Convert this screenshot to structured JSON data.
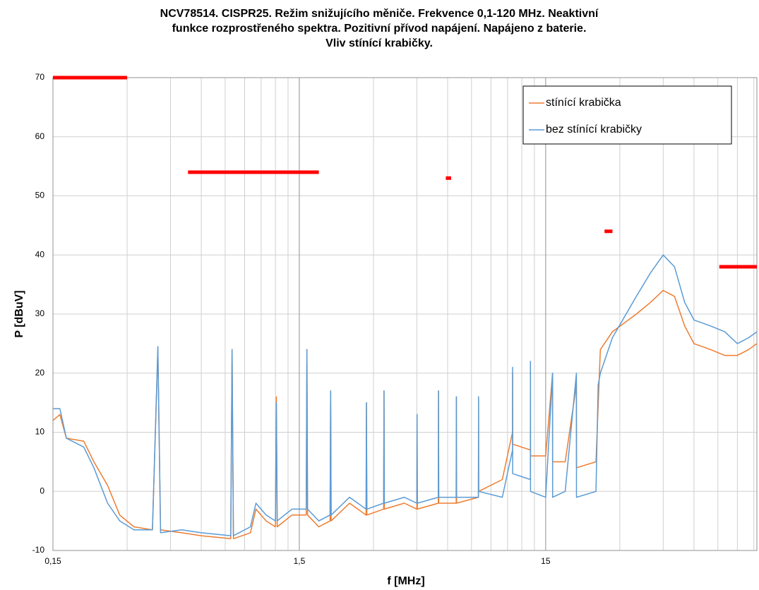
{
  "chart_data": {
    "type": "line",
    "title_lines": [
      "NCV78514. CISPR25. Režim snižujícího měniče. Frekvence 0,1-120 MHz. Neaktivní",
      "funkce rozprostřeného spektra. Pozitivní přívod napájení. Napájeno z baterie.",
      "Vliv stínící krabičky."
    ],
    "x_label": "f [MHz]",
    "y_label": "P [dBuV]",
    "log_x": true,
    "grid": true,
    "legend": "upper right",
    "xlim": [
      0.15,
      108
    ],
    "ylim": [
      -10,
      70
    ],
    "xticks": [
      {
        "value": 0.15,
        "label": "0,15"
      },
      {
        "value": 1.5,
        "label": "1,5"
      },
      15
    ],
    "xgrid": [
      0.3,
      0.45,
      0.6,
      0.75,
      0.9,
      1.05,
      1.2,
      1.35,
      3,
      4.5,
      6,
      7.5,
      9,
      10.5,
      12,
      13.5,
      30,
      45,
      60,
      75,
      90,
      105
    ],
    "yticks": [
      -10,
      0,
      10,
      20,
      30,
      40,
      50,
      60,
      70
    ],
    "series": [
      {
        "name": "stínící krabička",
        "color": "#ed7d31",
        "x": [
          0.15,
          0.16,
          0.17,
          0.2,
          0.22,
          0.25,
          0.28,
          0.32,
          0.38,
          0.4,
          0.41,
          0.5,
          0.6,
          0.79,
          0.8,
          0.81,
          0.95,
          1.0,
          1.1,
          1.2,
          1.21,
          1.22,
          1.4,
          1.6,
          1.61,
          1.62,
          1.8,
          2.0,
          2.01,
          2.02,
          2.4,
          2.8,
          2.81,
          2.82,
          3.3,
          3.31,
          3.32,
          4.0,
          4.5,
          4.51,
          4.52,
          5.5,
          5.51,
          5.52,
          6.5,
          6.51,
          6.52,
          8,
          8.01,
          8.02,
          10,
          11,
          11.01,
          11.02,
          13,
          13.01,
          13.02,
          15,
          16,
          16.01,
          18,
          20,
          20.01,
          24,
          25,
          28,
          35,
          40,
          45,
          50,
          55,
          60,
          70,
          80,
          90,
          100,
          108
        ],
        "values": [
          12,
          13,
          9,
          8.5,
          5,
          1,
          -4,
          -6,
          -6.5,
          24,
          -6.5,
          -7,
          -7.5,
          -8,
          24,
          -8,
          -7,
          -3,
          -5,
          -6,
          16,
          -6,
          -4,
          -4,
          24,
          -4,
          -6,
          -5,
          17,
          -5,
          -2,
          -4,
          15,
          -4,
          -3,
          17,
          -3,
          -2,
          -3,
          13,
          -3,
          -2,
          17,
          -2,
          -2,
          16,
          -2,
          -1,
          16,
          0,
          2,
          10,
          20,
          8,
          7,
          21,
          6,
          6,
          20,
          5,
          5,
          18,
          4,
          5,
          24,
          27,
          30,
          32,
          34,
          33,
          28,
          25,
          24,
          23,
          23,
          24,
          25
        ]
      },
      {
        "name": "bez stínící krabičky",
        "color": "#5b9bd5",
        "x": [
          0.15,
          0.16,
          0.17,
          0.2,
          0.22,
          0.25,
          0.28,
          0.32,
          0.38,
          0.4,
          0.41,
          0.5,
          0.6,
          0.79,
          0.8,
          0.81,
          0.95,
          1.0,
          1.1,
          1.2,
          1.21,
          1.22,
          1.4,
          1.6,
          1.61,
          1.62,
          1.8,
          2.0,
          2.01,
          2.02,
          2.4,
          2.8,
          2.81,
          2.82,
          3.3,
          3.31,
          3.32,
          4.0,
          4.5,
          4.51,
          4.52,
          5.5,
          5.51,
          5.52,
          6.5,
          6.51,
          6.52,
          8,
          8.01,
          8.02,
          10,
          11,
          11.01,
          11.02,
          13,
          13.01,
          13.02,
          15,
          16,
          16.01,
          18,
          20,
          20.01,
          24,
          24.5,
          25,
          28,
          35,
          40,
          45,
          50,
          55,
          60,
          70,
          80,
          90,
          100,
          108
        ],
        "values": [
          14,
          14,
          9,
          7.5,
          4,
          -2,
          -5,
          -6.5,
          -6.5,
          24.5,
          -7,
          -6.5,
          -7,
          -7.5,
          24,
          -7.5,
          -6,
          -2,
          -4,
          -5,
          15,
          -5,
          -3,
          -3,
          24,
          -3,
          -5,
          -4,
          17,
          -4,
          -1,
          -3,
          15,
          -3,
          -2,
          17,
          -2,
          -1,
          -2,
          13,
          -2,
          -1,
          17,
          -1,
          -1,
          16,
          -1,
          -1,
          16,
          0,
          -1,
          7,
          21,
          3,
          2,
          22,
          0,
          -1,
          20,
          -1,
          0,
          20,
          -1,
          0,
          18,
          20,
          26,
          33,
          37,
          40,
          38,
          32,
          29,
          28,
          27,
          25,
          26,
          27
        ]
      }
    ],
    "limits": {
      "color": "#ff0000",
      "segments": [
        {
          "x": [
            0.15,
            0.3
          ],
          "value": 70
        },
        {
          "x": [
            0.53,
            1.8
          ],
          "value": 54
        },
        {
          "x": [
            5.9,
            6.2
          ],
          "value": 53
        },
        {
          "x": [
            26,
            28
          ],
          "value": 44
        },
        {
          "x": [
            76,
            108
          ],
          "value": 38
        }
      ]
    }
  }
}
